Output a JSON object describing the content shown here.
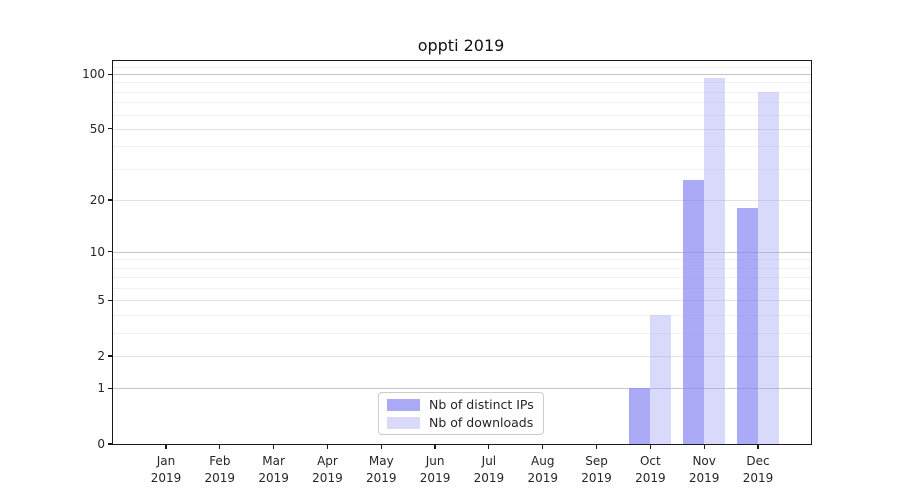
{
  "chart_data": {
    "type": "bar",
    "title": "oppti 2019",
    "xlabel": "",
    "ylabel": "",
    "categories": [
      "Jan",
      "Feb",
      "Mar",
      "Apr",
      "May",
      "Jun",
      "Jul",
      "Aug",
      "Sep",
      "Oct",
      "Nov",
      "Dec"
    ],
    "x_year_label": "2019",
    "series": [
      {
        "name": "Nb of distinct IPs",
        "color": "rgba(134,134,244,0.7)",
        "values": [
          0,
          0,
          0,
          0,
          0,
          0,
          0,
          0,
          0,
          1,
          26,
          18
        ]
      },
      {
        "name": "Nb of downloads",
        "color": "rgba(160,160,244,0.4)",
        "values": [
          0,
          0,
          0,
          0,
          0,
          0,
          0,
          0,
          0,
          4,
          95,
          80
        ]
      }
    ],
    "yscale": "log1p",
    "ylim": [
      0,
      118
    ],
    "y_major_ticks": [
      0,
      1,
      2,
      5,
      10,
      20,
      50,
      100
    ],
    "y_decade_lines": [
      1,
      10,
      100
    ],
    "y_minor_gridlines": [
      3,
      4,
      6,
      7,
      8,
      9,
      30,
      40,
      60,
      70,
      80,
      90,
      110
    ],
    "grid": "on",
    "legend_position": "lower center"
  }
}
